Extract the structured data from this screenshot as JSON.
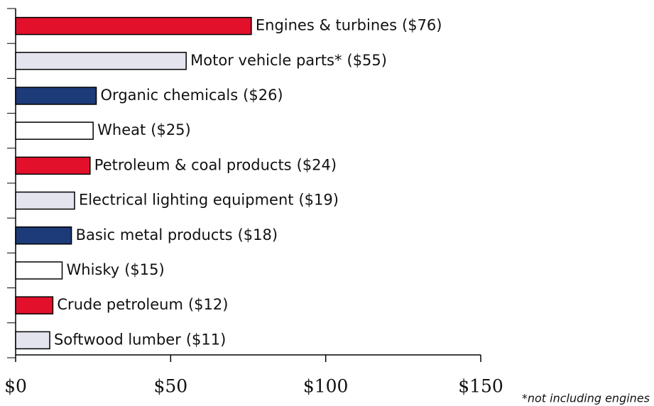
{
  "chart_data": {
    "type": "barh",
    "categories": [
      "Engines & turbines",
      "Motor vehicle parts*",
      "Organic chemicals",
      "Wheat",
      "Petroleum & coal products",
      "Electrical lighting equipment",
      "Basic metal products",
      "Whisky",
      "Crude petroleum",
      "Softwood lumber"
    ],
    "values": [
      76,
      55,
      26,
      25,
      24,
      19,
      18,
      15,
      12,
      11
    ],
    "value_labels": [
      "($76)",
      "($55)",
      "($26)",
      "($25)",
      "($24)",
      "($19)",
      "($18)",
      "($15)",
      "($12)",
      "($11)"
    ],
    "colors": [
      "#e3102b",
      "#e4e4ef",
      "#1c3b78",
      "#ffffff",
      "#e3102b",
      "#e4e4ef",
      "#1c3b78",
      "#ffffff",
      "#e3102b",
      "#e4e4ef"
    ],
    "xlim": [
      0,
      150
    ],
    "xticks": [
      {
        "value": 0,
        "label": "$0"
      },
      {
        "value": 50,
        "label": "$50"
      },
      {
        "value": 100,
        "label": "$100"
      },
      {
        "value": 150,
        "label": "$150"
      }
    ],
    "footnote": "*not including engines"
  }
}
